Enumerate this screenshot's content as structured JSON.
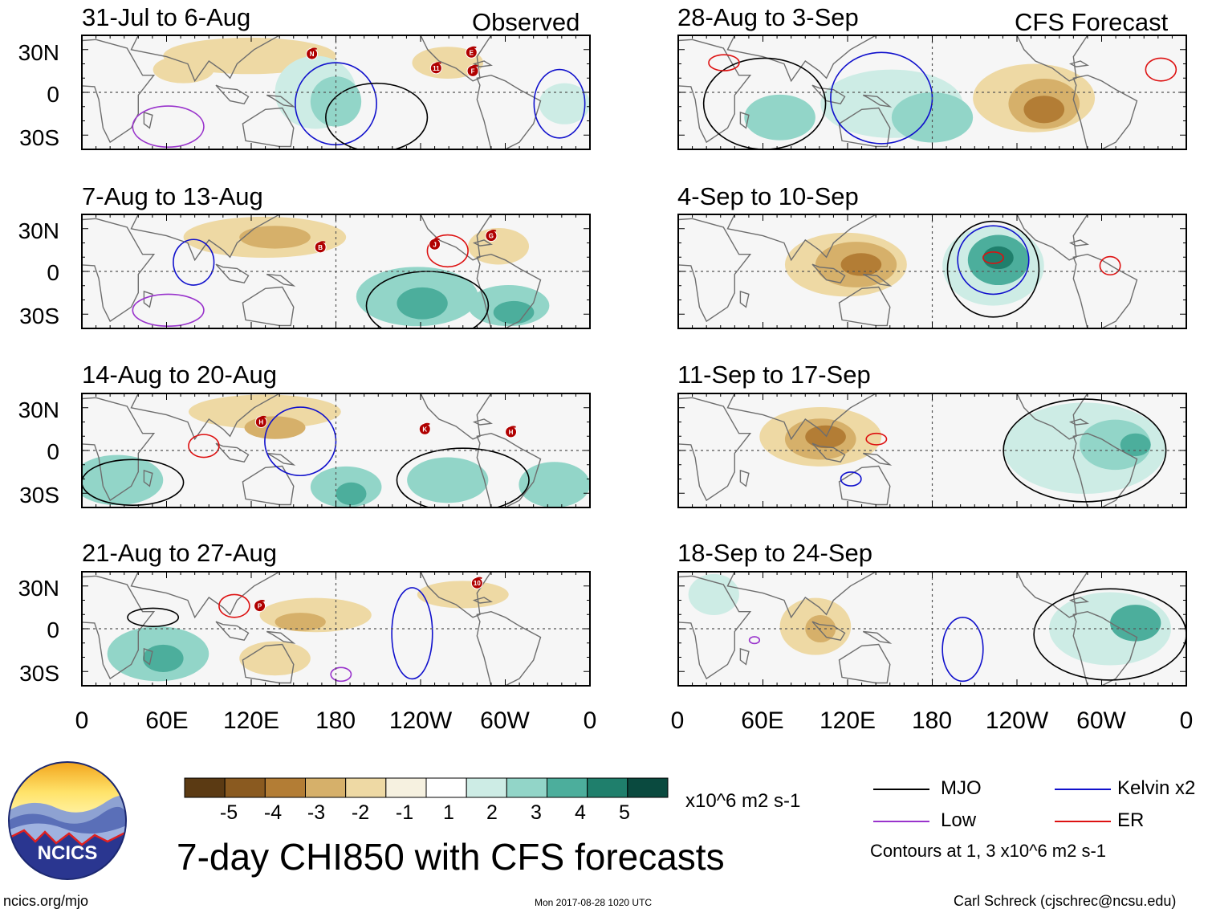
{
  "main_title": "7-day CHI850 with CFS forecasts",
  "footer": {
    "left": "ncics.org/mjo",
    "center": "Mon 2017-08-28 1020 UTC",
    "right": "Carl Schreck (cjschrec@ncsu.edu)"
  },
  "logo_text": "NCICS",
  "column_labels": {
    "observed": "Observed",
    "forecast": "CFS Forecast"
  },
  "chart_data": {
    "type": "map",
    "title": "7-day CHI850 with CFS forecasts",
    "y_ticks": [
      "30N",
      "0",
      "30S"
    ],
    "x_ticks": [
      "0",
      "60E",
      "120E",
      "180",
      "120W",
      "60W",
      "0"
    ],
    "x_tick_lon": [
      0,
      60,
      120,
      180,
      240,
      300,
      360
    ],
    "lon_range": [
      0,
      360
    ],
    "lat_range": [
      -40,
      40
    ],
    "panels": [
      {
        "id": "obs-1",
        "title": "31-Jul to 6-Aug",
        "kind": "observed",
        "storms": [
          {
            "label": "N",
            "lon": 163,
            "lat": 27
          },
          {
            "label": "11",
            "lon": 251,
            "lat": 17
          },
          {
            "label": "E",
            "lon": 276,
            "lat": 28
          },
          {
            "label": "F",
            "lon": 277,
            "lat": 15
          }
        ]
      },
      {
        "id": "obs-2",
        "title": "7-Aug to 13-Aug",
        "kind": "observed",
        "storms": [
          {
            "label": "B",
            "lon": 169,
            "lat": 17
          },
          {
            "label": "J",
            "lon": 250,
            "lat": 19
          },
          {
            "label": "G",
            "lon": 290,
            "lat": 25
          }
        ]
      },
      {
        "id": "obs-3",
        "title": "14-Aug to 20-Aug",
        "kind": "observed",
        "storms": [
          {
            "label": "H",
            "lon": 127,
            "lat": 20
          },
          {
            "label": "K",
            "lon": 243,
            "lat": 15
          },
          {
            "label": "H",
            "lon": 304,
            "lat": 13
          }
        ]
      },
      {
        "id": "obs-4",
        "title": "21-Aug to 27-Aug",
        "kind": "observed",
        "storms": [
          {
            "label": "P",
            "lon": 126,
            "lat": 16
          },
          {
            "label": "10",
            "lon": 280,
            "lat": 32
          }
        ]
      },
      {
        "id": "fcst-1",
        "title": "28-Aug to 3-Sep",
        "kind": "forecast",
        "storms": []
      },
      {
        "id": "fcst-2",
        "title": "4-Sep to 10-Sep",
        "kind": "forecast",
        "storms": []
      },
      {
        "id": "fcst-3",
        "title": "11-Sep to 17-Sep",
        "kind": "forecast",
        "storms": []
      },
      {
        "id": "fcst-4",
        "title": "18-Sep to 24-Sep",
        "kind": "forecast",
        "storms": []
      }
    ],
    "colorbar": {
      "unit": "x10^6 m2 s-1",
      "labels": [
        "-5",
        "-4",
        "-3",
        "-2",
        "-1",
        "1",
        "2",
        "3",
        "4",
        "5"
      ],
      "colors": [
        "#5b3a13",
        "#8a5a20",
        "#b37d35",
        "#d6b06a",
        "#eed9a4",
        "#f6f1e0",
        "#ffffff",
        "#cdece5",
        "#92d5c8",
        "#4cae9c",
        "#1f7f6c",
        "#0a4a3f"
      ]
    },
    "contours": {
      "items": [
        {
          "name": "MJO",
          "color": "#000000"
        },
        {
          "name": "Kelvin x2",
          "color": "#1010cc"
        },
        {
          "name": "Low",
          "color": "#9933cc"
        },
        {
          "name": "ER",
          "color": "#dd1111"
        }
      ],
      "note": "Contours at 1, 3 x10^6 m2 s-1"
    }
  }
}
